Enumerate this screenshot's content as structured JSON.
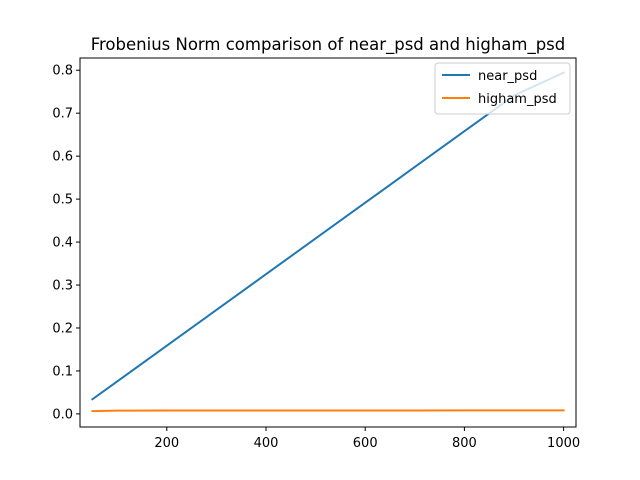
{
  "chart_data": {
    "type": "line",
    "title": "Frobenius Norm comparison of near_psd and higham_psd",
    "xlabel": "",
    "ylabel": "",
    "xlim": [
      25,
      1025
    ],
    "ylim": [
      -0.0305,
      0.8285
    ],
    "x_ticks": [
      200,
      400,
      600,
      800,
      1000
    ],
    "y_ticks": [
      0.0,
      0.1,
      0.2,
      0.3,
      0.4,
      0.5,
      0.6,
      0.7,
      0.8
    ],
    "x_tick_labels": [
      "200",
      "400",
      "600",
      "800",
      "1000"
    ],
    "y_tick_labels": [
      "0.0",
      "0.1",
      "0.2",
      "0.3",
      "0.4",
      "0.5",
      "0.6",
      "0.7",
      "0.8"
    ],
    "grid": false,
    "legend_position": "top-right",
    "series": [
      {
        "name": "near_psd",
        "color": "#1f77b4",
        "x": [
          50,
          100,
          200,
          300,
          400,
          500,
          600,
          700,
          800,
          900,
          1000
        ],
        "values": [
          0.034,
          0.0756,
          0.1588,
          0.242,
          0.3252,
          0.4084,
          0.4916,
          0.5748,
          0.658,
          0.7412,
          0.7944
        ]
      },
      {
        "name": "higham_psd",
        "color": "#ff7f0e",
        "x": [
          50,
          100,
          200,
          300,
          400,
          500,
          600,
          700,
          800,
          900,
          1000
        ],
        "values": [
          0.0065,
          0.0075,
          0.0078,
          0.0079,
          0.008,
          0.008,
          0.008,
          0.008,
          0.0081,
          0.0081,
          0.0081
        ]
      }
    ]
  }
}
